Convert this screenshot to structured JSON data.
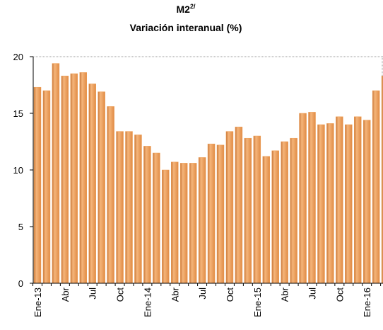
{
  "chart_data": {
    "type": "bar",
    "title": "M2",
    "title_superscript": "2/",
    "subtitle": "Variación interanual  (%)",
    "categories": [
      "Ene-13",
      null,
      null,
      "Abr",
      null,
      null,
      "Jul",
      null,
      null,
      "Oct",
      null,
      null,
      "Ene-14",
      null,
      null,
      "Abr",
      null,
      null,
      "Jul",
      null,
      null,
      "Oct",
      null,
      null,
      "Ene-15",
      null,
      null,
      "Abr",
      null,
      null,
      "Jul",
      null,
      null,
      "Oct",
      null,
      null,
      "Ene-16",
      null,
      null
    ],
    "values": [
      17.3,
      17.0,
      19.4,
      18.3,
      18.5,
      18.6,
      17.6,
      16.9,
      15.6,
      13.4,
      13.4,
      13.1,
      12.1,
      11.5,
      10.0,
      10.7,
      10.6,
      10.6,
      11.1,
      12.3,
      12.2,
      13.4,
      13.8,
      12.8,
      13.0,
      11.2,
      11.7,
      12.5,
      12.8,
      15.0,
      15.1,
      14.0,
      14.1,
      14.7,
      14.0,
      14.7,
      14.4,
      17.0,
      18.3
    ],
    "color": "#ef9f55",
    "ylim": [
      0,
      20
    ],
    "yticks": [
      0,
      5,
      10,
      15,
      20
    ]
  }
}
